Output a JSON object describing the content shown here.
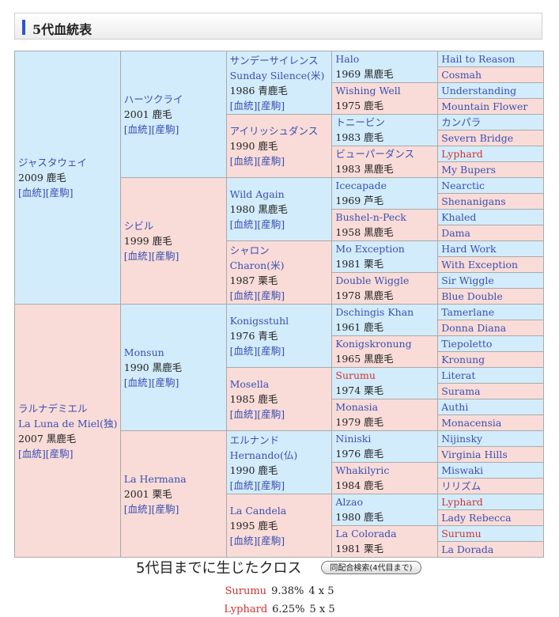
{
  "header": {
    "title": "5代血統表"
  },
  "links": {
    "pedigree": "[血統]",
    "offspring": "[産駒]"
  },
  "colors": {
    "male_bg": "#d3ecfb",
    "female_bg": "#f9dcd8",
    "link": "#3a4fb0",
    "cross_highlight": "#d03030"
  },
  "gen1": [
    {
      "names": [
        "ジャスタウェイ"
      ],
      "info": "2009 鹿毛",
      "sex": "m"
    },
    {
      "names": [
        "ラルナデミエル",
        "La Luna de Miel(独)"
      ],
      "info": "2007 黒鹿毛",
      "sex": "f"
    }
  ],
  "gen2": [
    {
      "names": [
        "ハーツクライ"
      ],
      "info": "2001 鹿毛",
      "sex": "m"
    },
    {
      "names": [
        "シビル"
      ],
      "info": "1999 鹿毛",
      "sex": "f"
    },
    {
      "names": [
        "Monsun"
      ],
      "info": "1990 黒鹿毛",
      "sex": "m"
    },
    {
      "names": [
        "La Hermana"
      ],
      "info": "2001 栗毛",
      "sex": "f"
    }
  ],
  "gen3": [
    {
      "names": [
        "サンデーサイレンス",
        "Sunday Silence(米)"
      ],
      "info": "1986 青鹿毛",
      "sex": "m"
    },
    {
      "names": [
        "アイリッシュダンス"
      ],
      "info": "1990 鹿毛",
      "sex": "f"
    },
    {
      "names": [
        "Wild Again"
      ],
      "info": "1980 黒鹿毛",
      "sex": "m"
    },
    {
      "names": [
        "シャロン",
        "Charon(米)"
      ],
      "info": "1987 栗毛",
      "sex": "f"
    },
    {
      "names": [
        "Konigsstuhl"
      ],
      "info": "1976 青毛",
      "sex": "m"
    },
    {
      "names": [
        "Mosella"
      ],
      "info": "1985 鹿毛",
      "sex": "f"
    },
    {
      "names": [
        "エルナンド",
        "Hernando(仏)"
      ],
      "info": "1990 鹿毛",
      "sex": "m"
    },
    {
      "names": [
        "La Candela"
      ],
      "info": "1995 鹿毛",
      "sex": "f"
    }
  ],
  "gen4": [
    {
      "names": [
        "Halo"
      ],
      "info": "1969 黒鹿毛"
    },
    {
      "names": [
        "Wishing Well"
      ],
      "info": "1975 鹿毛"
    },
    {
      "names": [
        "トニービン"
      ],
      "info": "1983 鹿毛"
    },
    {
      "names": [
        "ビューパーダンス"
      ],
      "info": "1983 黒鹿毛"
    },
    {
      "names": [
        "Icecapade"
      ],
      "info": "1969 芦毛"
    },
    {
      "names": [
        "Bushel-n-Peck"
      ],
      "info": "1958 黒鹿毛"
    },
    {
      "names": [
        "Mo Exception"
      ],
      "info": "1981 栗毛"
    },
    {
      "names": [
        "Double Wiggle"
      ],
      "info": "1978 黒鹿毛"
    },
    {
      "names": [
        "Dschingis Khan"
      ],
      "info": "1961 鹿毛"
    },
    {
      "names": [
        "Konigskronung"
      ],
      "info": "1965 黒鹿毛"
    },
    {
      "names": [
        "Surumu"
      ],
      "info": "1974 栗毛",
      "cross": true
    },
    {
      "names": [
        "Monasia"
      ],
      "info": "1979 鹿毛"
    },
    {
      "names": [
        "Niniski"
      ],
      "info": "1976 鹿毛"
    },
    {
      "names": [
        "Whakilyric"
      ],
      "info": "1984 鹿毛"
    },
    {
      "names": [
        "Alzao"
      ],
      "info": "1980 鹿毛"
    },
    {
      "names": [
        "La Colorada"
      ],
      "info": "1981 栗毛"
    }
  ],
  "gen5": [
    {
      "name": "Hail to Reason"
    },
    {
      "name": "Cosmah"
    },
    {
      "name": "Understanding"
    },
    {
      "name": "Mountain Flower"
    },
    {
      "name": "カンパラ"
    },
    {
      "name": "Severn Bridge"
    },
    {
      "name": "Lyphard",
      "cross": true
    },
    {
      "name": "My Bupers"
    },
    {
      "name": "Nearctic"
    },
    {
      "name": "Shenanigans"
    },
    {
      "name": "Khaled"
    },
    {
      "name": "Dama"
    },
    {
      "name": "Hard Work"
    },
    {
      "name": "With Exception"
    },
    {
      "name": "Sir Wiggle"
    },
    {
      "name": "Blue Double"
    },
    {
      "name": "Tamerlane"
    },
    {
      "name": "Donna Diana"
    },
    {
      "name": "Tiepoletto"
    },
    {
      "name": "Kronung"
    },
    {
      "name": "Literat"
    },
    {
      "name": "Surama"
    },
    {
      "name": "Authi"
    },
    {
      "name": "Monacensia"
    },
    {
      "name": "Nijinsky"
    },
    {
      "name": "Virginia Hills"
    },
    {
      "name": "Miswaki"
    },
    {
      "name": "リリズム"
    },
    {
      "name": "Lyphard",
      "cross": true
    },
    {
      "name": "Lady Rebecca"
    },
    {
      "name": "Surumu",
      "cross": true
    },
    {
      "name": "La Dorada"
    }
  ],
  "crosses": {
    "title": "5代目までに生じたクロス",
    "search_button": "同配合検索(4代目まで)",
    "items": [
      {
        "name": "Surumu",
        "percent": "9.38%",
        "gens": "4 x 5"
      },
      {
        "name": "Lyphard",
        "percent": "6.25%",
        "gens": "5 x 5"
      }
    ]
  }
}
